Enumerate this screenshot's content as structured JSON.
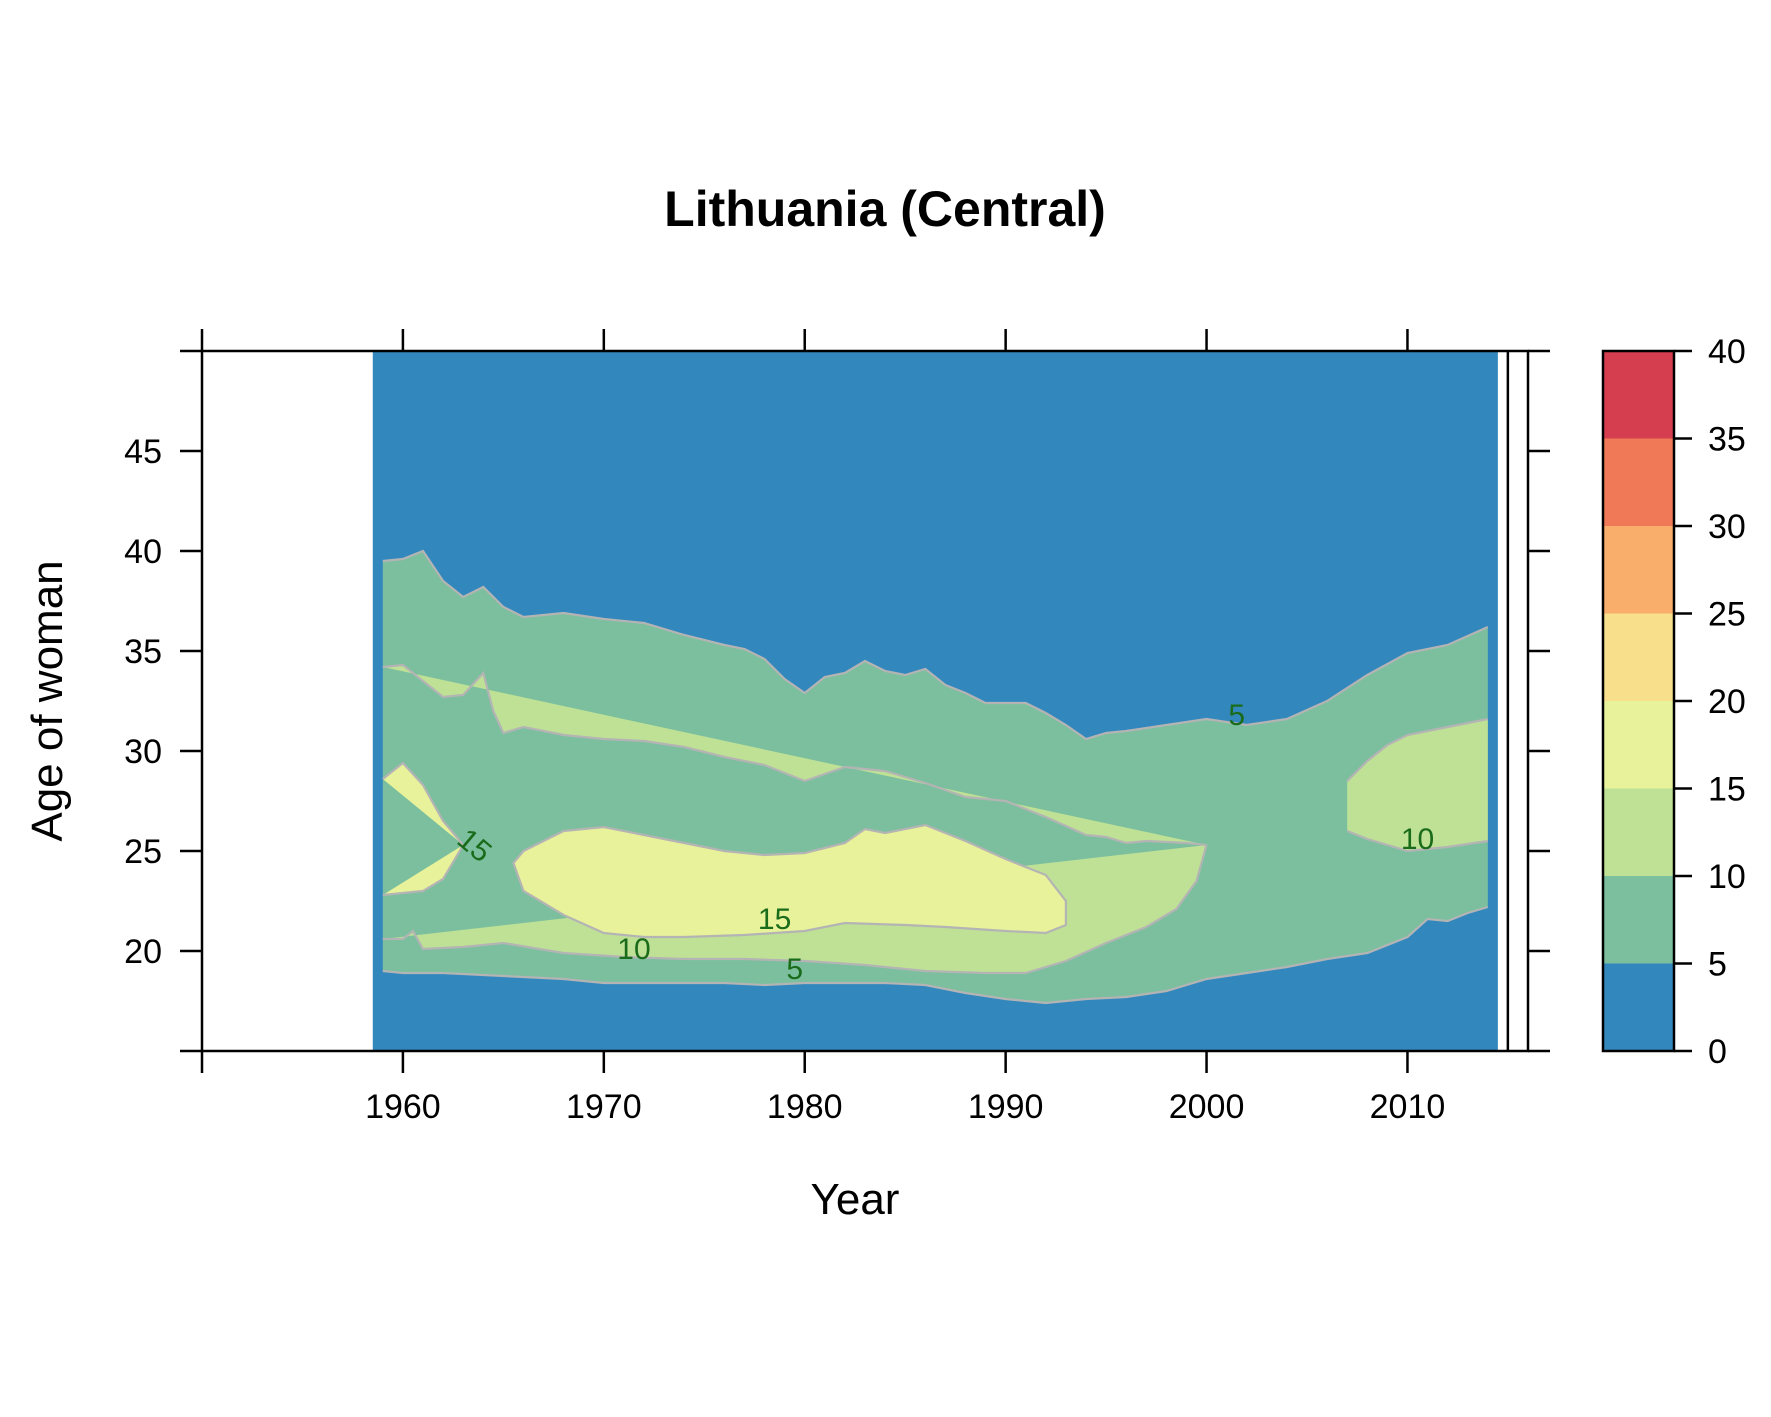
{
  "chart_data": {
    "type": "heatmap",
    "title": "Lithuania (Central)",
    "xlabel": "Year",
    "ylabel": "Age of woman",
    "xlim": [
      1950,
      2016
    ],
    "ylim": [
      15,
      50
    ],
    "x_ticks": [
      1960,
      1970,
      1980,
      1990,
      2000,
      2010
    ],
    "y_ticks": [
      20,
      25,
      30,
      35,
      40,
      45
    ],
    "data_year_range": [
      1959,
      2014
    ],
    "colorbar": {
      "levels": [
        0,
        5,
        10,
        15,
        20,
        25,
        30,
        35,
        40
      ],
      "tick_labels": [
        "0",
        "5",
        "10",
        "15",
        "20",
        "25",
        "30",
        "35",
        "40"
      ],
      "colors": [
        "#3288bd",
        "#7bbf9e",
        "#bee196",
        "#e7f29a",
        "#f8df8c",
        "#f9ae6c",
        "#f07a58",
        "#d53e4f"
      ]
    },
    "contour_color": "#b4b4b4",
    "contour_label_color": "#1a6b1a",
    "contour_labels": [
      {
        "text": "5",
        "year": 2001.5,
        "age": 31.7
      },
      {
        "text": "10",
        "year": 2010.5,
        "age": 25.5
      },
      {
        "text": "15",
        "year": 1963.5,
        "age": 25.2
      },
      {
        "text": "15",
        "year": 1978.5,
        "age": 21.5
      },
      {
        "text": "10",
        "year": 1971.5,
        "age": 20.0
      },
      {
        "text": "5",
        "year": 1979.5,
        "age": 19.0
      }
    ],
    "bands": [
      {
        "level": 5,
        "name": "contour-5",
        "upper": [
          [
            1959,
            39.5
          ],
          [
            1960,
            39.6
          ],
          [
            1961,
            40.0
          ],
          [
            1962,
            38.5
          ],
          [
            1963,
            37.7
          ],
          [
            1964,
            38.2
          ],
          [
            1965,
            37.2
          ],
          [
            1966,
            36.7
          ],
          [
            1968,
            36.9
          ],
          [
            1970,
            36.6
          ],
          [
            1972,
            36.4
          ],
          [
            1974,
            35.8
          ],
          [
            1976,
            35.3
          ],
          [
            1977,
            35.1
          ],
          [
            1978,
            34.6
          ],
          [
            1979,
            33.6
          ],
          [
            1980,
            32.9
          ],
          [
            1981,
            33.7
          ],
          [
            1982,
            33.9
          ],
          [
            1983,
            34.5
          ],
          [
            1984,
            34.0
          ],
          [
            1985,
            33.8
          ],
          [
            1986,
            34.1
          ],
          [
            1987,
            33.3
          ],
          [
            1988,
            32.9
          ],
          [
            1989,
            32.4
          ],
          [
            1991,
            32.4
          ],
          [
            1992,
            31.9
          ],
          [
            1993,
            31.3
          ],
          [
            1994,
            30.6
          ],
          [
            1995,
            30.9
          ],
          [
            1996,
            31.0
          ],
          [
            1998,
            31.3
          ],
          [
            2000,
            31.6
          ],
          [
            2002,
            31.3
          ],
          [
            2004,
            31.6
          ],
          [
            2006,
            32.5
          ],
          [
            2008,
            33.8
          ],
          [
            2010,
            34.9
          ],
          [
            2012,
            35.3
          ],
          [
            2014,
            36.2
          ]
        ],
        "lower": [
          [
            1959,
            19.0
          ],
          [
            1960,
            18.9
          ],
          [
            1962,
            18.9
          ],
          [
            1964,
            18.8
          ],
          [
            1966,
            18.7
          ],
          [
            1968,
            18.6
          ],
          [
            1970,
            18.4
          ],
          [
            1972,
            18.4
          ],
          [
            1974,
            18.4
          ],
          [
            1976,
            18.4
          ],
          [
            1978,
            18.3
          ],
          [
            1980,
            18.4
          ],
          [
            1982,
            18.4
          ],
          [
            1984,
            18.4
          ],
          [
            1986,
            18.3
          ],
          [
            1988,
            17.9
          ],
          [
            1990,
            17.6
          ],
          [
            1992,
            17.4
          ],
          [
            1994,
            17.6
          ],
          [
            1996,
            17.7
          ],
          [
            1998,
            18.0
          ],
          [
            2000,
            18.6
          ],
          [
            2002,
            18.9
          ],
          [
            2004,
            19.2
          ],
          [
            2006,
            19.6
          ],
          [
            2008,
            19.9
          ],
          [
            2010,
            20.7
          ],
          [
            2011,
            21.6
          ],
          [
            2012,
            21.5
          ],
          [
            2013,
            21.9
          ],
          [
            2014,
            22.2
          ]
        ]
      },
      {
        "level": 10,
        "name": "contour-10-main",
        "upper": [
          [
            1959,
            34.2
          ],
          [
            1960,
            34.3
          ],
          [
            1961,
            33.5
          ],
          [
            1962,
            32.7
          ],
          [
            1963,
            32.8
          ],
          [
            1964,
            33.9
          ],
          [
            1964.5,
            32.0
          ],
          [
            1965,
            30.9
          ],
          [
            1966,
            31.2
          ],
          [
            1968,
            30.8
          ],
          [
            1970,
            30.6
          ],
          [
            1972,
            30.5
          ],
          [
            1974,
            30.2
          ],
          [
            1976,
            29.7
          ],
          [
            1978,
            29.3
          ],
          [
            1980,
            28.5
          ],
          [
            1982,
            29.2
          ],
          [
            1984,
            29.0
          ],
          [
            1986,
            28.4
          ],
          [
            1988,
            27.7
          ],
          [
            1990,
            27.5
          ],
          [
            1992,
            26.7
          ],
          [
            1994,
            25.8
          ],
          [
            1995,
            25.7
          ],
          [
            1996,
            25.4
          ],
          [
            1997,
            25.5
          ],
          [
            1999,
            25.4
          ],
          [
            2000,
            25.3
          ]
        ],
        "lower": [
          [
            2000,
            25.3
          ],
          [
            1999.5,
            23.5
          ],
          [
            1998.5,
            22.1
          ],
          [
            1997,
            21.2
          ],
          [
            1995,
            20.4
          ],
          [
            1993,
            19.5
          ],
          [
            1991,
            18.9
          ],
          [
            1989,
            18.9
          ],
          [
            1986,
            19.0
          ],
          [
            1983,
            19.3
          ],
          [
            1980,
            19.5
          ],
          [
            1977,
            19.6
          ],
          [
            1974,
            19.6
          ],
          [
            1971,
            19.7
          ],
          [
            1968,
            19.9
          ],
          [
            1965,
            20.4
          ],
          [
            1963,
            20.2
          ],
          [
            1961,
            20.1
          ],
          [
            1960.5,
            21.0
          ],
          [
            1960,
            20.6
          ],
          [
            1959,
            20.6
          ]
        ]
      },
      {
        "level": 10,
        "name": "contour-10-right",
        "upper": [
          [
            2007,
            28.5
          ],
          [
            2008,
            29.5
          ],
          [
            2009,
            30.3
          ],
          [
            2010,
            30.8
          ],
          [
            2012,
            31.2
          ],
          [
            2014,
            31.6
          ]
        ],
        "lower": [
          [
            2007,
            26.0
          ],
          [
            2008,
            25.6
          ],
          [
            2010,
            25.0
          ],
          [
            2012,
            25.2
          ],
          [
            2014,
            25.5
          ]
        ]
      },
      {
        "level": 15,
        "name": "contour-15-left",
        "upper": [
          [
            1959,
            28.6
          ],
          [
            1960,
            29.4
          ],
          [
            1961,
            28.3
          ],
          [
            1962,
            26.5
          ],
          [
            1963,
            25.3
          ]
        ],
        "lower": [
          [
            1963,
            25.3
          ],
          [
            1962,
            23.6
          ],
          [
            1961,
            23.0
          ],
          [
            1960,
            22.9
          ],
          [
            1959,
            22.8
          ]
        ]
      },
      {
        "level": 15,
        "name": "contour-15-main",
        "upper": [
          [
            1966,
            25.0
          ],
          [
            1968,
            26.0
          ],
          [
            1970,
            26.2
          ],
          [
            1972,
            25.8
          ],
          [
            1974,
            25.4
          ],
          [
            1976,
            25.0
          ],
          [
            1978,
            24.8
          ],
          [
            1980,
            24.9
          ],
          [
            1982,
            25.4
          ],
          [
            1983,
            26.1
          ],
          [
            1984,
            25.9
          ],
          [
            1986,
            26.3
          ],
          [
            1988,
            25.5
          ],
          [
            1990,
            24.6
          ],
          [
            1992,
            23.8
          ],
          [
            1993,
            22.5
          ],
          [
            1993,
            21.3
          ],
          [
            1992,
            20.9
          ],
          [
            1990,
            21.0
          ],
          [
            1987,
            21.2
          ],
          [
            1985,
            21.3
          ],
          [
            1982,
            21.4
          ],
          [
            1980,
            21.0
          ],
          [
            1977,
            20.8
          ],
          [
            1974,
            20.7
          ],
          [
            1972,
            20.7
          ],
          [
            1970,
            20.9
          ],
          [
            1968,
            21.8
          ],
          [
            1966,
            23.0
          ],
          [
            1965.5,
            24.4
          ]
        ]
      }
    ]
  }
}
